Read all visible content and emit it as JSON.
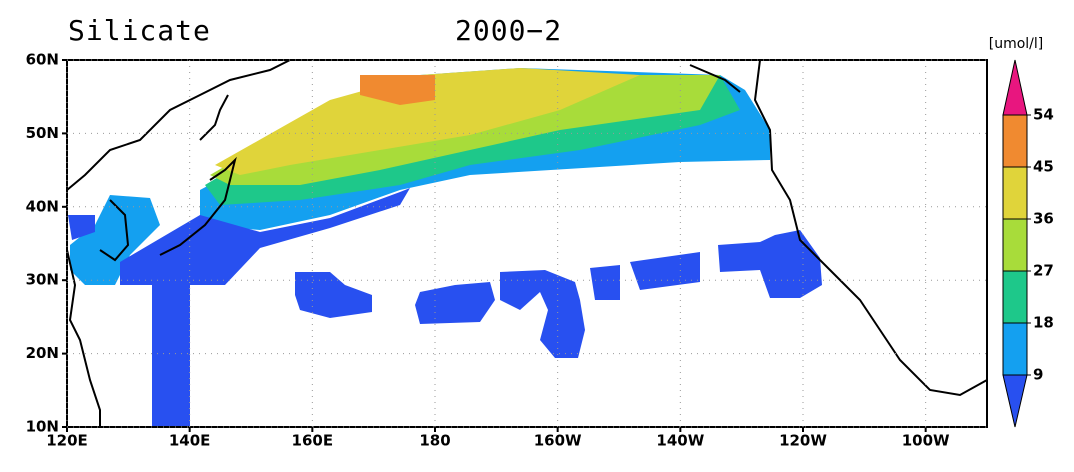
{
  "title": "Silicate",
  "subtitle": "2000−2",
  "map": {
    "xlim": [
      120,
      270
    ],
    "ylim": [
      10,
      60
    ],
    "xticks": [
      {
        "value": 120,
        "label": "120E"
      },
      {
        "value": 140,
        "label": "140E"
      },
      {
        "value": 160,
        "label": "160E"
      },
      180,
      {
        "value": 200,
        "label": "160W"
      },
      {
        "value": 220,
        "label": "140W"
      },
      {
        "value": 240,
        "label": "120W"
      },
      {
        "value": 260,
        "label": "100W"
      }
    ],
    "yticks": [
      {
        "value": 10,
        "label": "10N"
      },
      {
        "value": 20,
        "label": "20N"
      },
      {
        "value": 30,
        "label": "30N"
      },
      {
        "value": 40,
        "label": "40N"
      },
      {
        "value": 50,
        "label": "50N"
      },
      {
        "value": 60,
        "label": "60N"
      }
    ],
    "grid": true
  },
  "colorbar": {
    "unit": "[umol/l]",
    "levels": [
      9,
      18,
      27,
      36,
      45,
      54
    ],
    "colors": [
      "#2850f0",
      "#14a0f0",
      "#1ec88a",
      "#a8dc3a",
      "#e0d43a",
      "#f08a30",
      "#e8167f"
    ]
  }
}
